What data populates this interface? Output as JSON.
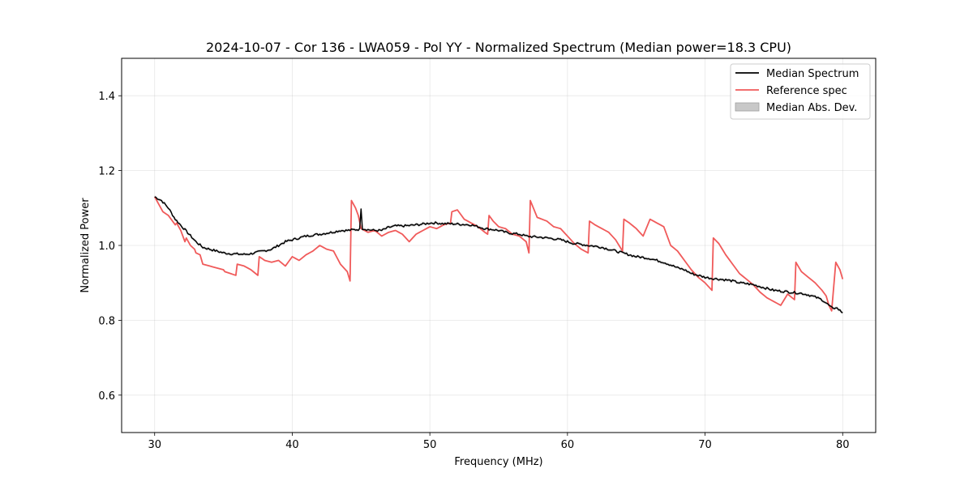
{
  "chart_data": {
    "type": "line",
    "title": "2024-10-07 - Cor 136 - LWA059 - Pol YY - Normalized Spectrum (Median power=18.3 CPU)",
    "xlabel": "Frequency (MHz)",
    "ylabel": "Normalized Power",
    "xlim": [
      27.6,
      82.4
    ],
    "ylim": [
      0.5,
      1.5
    ],
    "xticks": [
      30,
      40,
      50,
      60,
      70,
      80
    ],
    "yticks": [
      0.6,
      0.8,
      1.0,
      1.2,
      1.4
    ],
    "xtick_labels": [
      "30",
      "40",
      "50",
      "60",
      "70",
      "80"
    ],
    "ytick_labels": [
      "0.6",
      "0.8",
      "1.0",
      "1.2",
      "1.4"
    ],
    "grid": true,
    "legend_position": "top-right",
    "series": [
      {
        "name": "Median Spectrum",
        "color": "#000000",
        "x": [
          30.0,
          30.5,
          31.0,
          31.5,
          32.0,
          32.5,
          33.0,
          33.5,
          34.0,
          34.5,
          35.0,
          35.5,
          36.0,
          36.5,
          37.0,
          37.5,
          38.0,
          38.5,
          39.0,
          39.5,
          40.0,
          40.5,
          41.0,
          41.5,
          42.0,
          42.5,
          43.0,
          43.5,
          44.0,
          44.5,
          44.9,
          45.0,
          45.1,
          45.5,
          46.0,
          46.5,
          47.0,
          47.5,
          48.0,
          48.5,
          49.0,
          49.5,
          50.0,
          50.5,
          51.0,
          51.5,
          52.0,
          52.5,
          53.0,
          53.5,
          54.0,
          54.5,
          55.0,
          55.5,
          56.0,
          56.5,
          57.0,
          57.5,
          58.0,
          58.5,
          59.0,
          59.5,
          60.0,
          60.5,
          61.0,
          61.5,
          62.0,
          62.5,
          63.0,
          63.5,
          64.0,
          64.5,
          65.0,
          65.5,
          66.0,
          66.5,
          67.0,
          67.5,
          68.0,
          68.5,
          69.0,
          69.5,
          70.0,
          70.5,
          71.0,
          71.5,
          72.0,
          72.5,
          73.0,
          73.5,
          74.0,
          74.5,
          75.0,
          75.5,
          76.0,
          76.5,
          77.0,
          77.5,
          78.0,
          78.5,
          79.0,
          79.3,
          79.5,
          80.0
        ],
        "values": [
          1.13,
          1.12,
          1.1,
          1.07,
          1.05,
          1.03,
          1.01,
          0.995,
          0.99,
          0.985,
          0.98,
          0.978,
          0.977,
          0.976,
          0.978,
          0.982,
          0.986,
          0.99,
          1.0,
          1.01,
          1.015,
          1.02,
          1.025,
          1.028,
          1.03,
          1.033,
          1.036,
          1.04,
          1.04,
          1.042,
          1.043,
          1.1,
          1.045,
          1.042,
          1.04,
          1.04,
          1.048,
          1.052,
          1.052,
          1.053,
          1.055,
          1.057,
          1.06,
          1.06,
          1.058,
          1.058,
          1.057,
          1.056,
          1.055,
          1.05,
          1.045,
          1.043,
          1.04,
          1.035,
          1.032,
          1.03,
          1.025,
          1.023,
          1.022,
          1.02,
          1.018,
          1.015,
          1.01,
          1.005,
          1.003,
          1.0,
          0.998,
          0.995,
          0.99,
          0.985,
          0.98,
          0.975,
          0.97,
          0.968,
          0.965,
          0.96,
          0.955,
          0.948,
          0.94,
          0.935,
          0.925,
          0.92,
          0.915,
          0.912,
          0.91,
          0.908,
          0.905,
          0.9,
          0.898,
          0.895,
          0.89,
          0.885,
          0.88,
          0.878,
          0.876,
          0.874,
          0.872,
          0.868,
          0.862,
          0.855,
          0.84,
          0.83,
          0.835,
          0.82
        ]
      },
      {
        "name": "Reference spec",
        "color": "#f05a5a",
        "x": [
          30.0,
          30.3,
          30.6,
          31.0,
          31.4,
          31.5,
          31.6,
          31.9,
          32.0,
          32.2,
          32.3,
          32.6,
          32.9,
          33.0,
          33.3,
          33.5,
          34.0,
          34.5,
          35.0,
          35.1,
          35.5,
          35.9,
          36.0,
          36.5,
          37.0,
          37.5,
          37.6,
          38.0,
          38.5,
          39.0,
          39.5,
          40.0,
          40.5,
          41.0,
          41.5,
          42.0,
          42.5,
          43.0,
          43.5,
          44.0,
          44.2,
          44.3,
          44.6,
          44.8,
          45.0,
          45.5,
          46.0,
          46.5,
          47.0,
          47.5,
          48.0,
          48.5,
          49.0,
          49.5,
          50.0,
          50.5,
          51.0,
          51.5,
          51.6,
          52.0,
          52.5,
          53.0,
          53.5,
          54.0,
          54.2,
          54.3,
          54.6,
          55.0,
          55.5,
          56.0,
          56.5,
          57.0,
          57.2,
          57.3,
          57.8,
          58.5,
          59.0,
          59.5,
          60.0,
          60.5,
          61.0,
          61.5,
          61.6,
          62.0,
          62.5,
          63.0,
          63.5,
          64.0,
          64.1,
          64.5,
          65.0,
          65.5,
          66.0,
          66.5,
          67.0,
          67.5,
          68.0,
          68.5,
          69.0,
          69.5,
          70.0,
          70.5,
          70.6,
          71.0,
          71.5,
          72.0,
          72.5,
          73.0,
          73.5,
          74.0,
          74.5,
          75.0,
          75.5,
          76.0,
          76.5,
          76.6,
          77.0,
          77.5,
          78.0,
          78.5,
          78.8,
          79.0,
          79.2,
          79.5,
          79.8,
          80.0
        ],
        "values": [
          1.13,
          1.11,
          1.09,
          1.08,
          1.06,
          1.055,
          1.06,
          1.04,
          1.03,
          1.01,
          1.02,
          1.0,
          0.99,
          0.98,
          0.975,
          0.95,
          0.945,
          0.94,
          0.935,
          0.93,
          0.925,
          0.92,
          0.95,
          0.945,
          0.935,
          0.92,
          0.97,
          0.96,
          0.955,
          0.96,
          0.945,
          0.97,
          0.96,
          0.975,
          0.985,
          1.0,
          0.99,
          0.985,
          0.95,
          0.93,
          0.905,
          1.12,
          1.1,
          1.08,
          1.045,
          1.035,
          1.04,
          1.025,
          1.035,
          1.04,
          1.03,
          1.01,
          1.03,
          1.04,
          1.05,
          1.045,
          1.055,
          1.06,
          1.09,
          1.095,
          1.07,
          1.06,
          1.05,
          1.035,
          1.03,
          1.08,
          1.065,
          1.05,
          1.045,
          1.03,
          1.025,
          1.01,
          0.98,
          1.12,
          1.075,
          1.065,
          1.05,
          1.045,
          1.025,
          1.005,
          0.99,
          0.98,
          1.065,
          1.055,
          1.045,
          1.035,
          1.015,
          0.985,
          1.07,
          1.06,
          1.045,
          1.025,
          1.07,
          1.06,
          1.05,
          1.0,
          0.985,
          0.96,
          0.935,
          0.915,
          0.9,
          0.88,
          1.02,
          1.005,
          0.975,
          0.95,
          0.925,
          0.91,
          0.895,
          0.875,
          0.86,
          0.85,
          0.84,
          0.87,
          0.855,
          0.955,
          0.93,
          0.915,
          0.9,
          0.88,
          0.865,
          0.84,
          0.825,
          0.955,
          0.935,
          0.91
        ]
      },
      {
        "name": "Median Abs. Dev.",
        "color": "#c8c8c8",
        "type": "band"
      }
    ]
  }
}
